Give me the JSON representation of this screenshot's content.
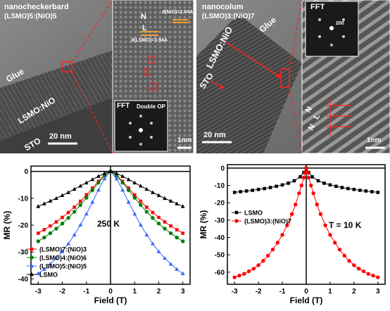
{
  "top_left": {
    "title_line1": "nanocheckerbard",
    "title_line2": "(LSMO)5:(NiO)5",
    "glue_label": "Glue",
    "film_label": "LSMO:NiO",
    "substrate_label": "STO",
    "scale_main": "20 nm",
    "scale_zoom": "1nm",
    "fft_label": "FFT",
    "fft_note": "Double OP",
    "lattice_letter_1": "N",
    "lattice_letter_2": "L",
    "d_lsmo": "d(LSMO)=3.94A",
    "d_nio": "d(NiO)=2.04A"
  },
  "top_right": {
    "title_line1": "nanocolum",
    "title_line2": "(LSMO)3:(NiO)7",
    "glue_label": "Glue",
    "film_label": "LSMO:NiO",
    "substrate_label": "STO",
    "scale_main": "20 nm",
    "scale_zoom": "1nm",
    "fft_label": "FFT",
    "fft_spot_label": "200",
    "layer_letters": [
      "N",
      "L",
      "N"
    ]
  },
  "chart_data": [
    {
      "type": "line",
      "xlabel": "Field (T)",
      "ylabel": "MR (%)",
      "xlim": [
        -3.3,
        3.3
      ],
      "ylim": [
        -42,
        2
      ],
      "xticks": [
        -3,
        -2,
        -1,
        0,
        1,
        2,
        3
      ],
      "yticks": [
        0,
        -10,
        -20,
        -30,
        -40
      ],
      "annotation": "250 K",
      "legend_position": "bottom-left",
      "series": [
        {
          "name": "(LSMO)7:(NiO)3",
          "color": "#ff0000",
          "marker": "square",
          "x": [
            -3,
            -2.75,
            -2.5,
            -2.25,
            -2,
            -1.75,
            -1.5,
            -1.25,
            -1,
            -0.75,
            -0.5,
            -0.25,
            0,
            0.25,
            0.5,
            0.75,
            1,
            1.25,
            1.5,
            1.75,
            2,
            2.25,
            2.5,
            2.75,
            3
          ],
          "y": [
            -23,
            -21.7,
            -20.3,
            -18.8,
            -17.1,
            -15.3,
            -13.3,
            -11.1,
            -8.7,
            -6.2,
            -3.7,
            -1.4,
            0,
            -1.4,
            -3.7,
            -6.2,
            -8.7,
            -11.1,
            -13.3,
            -15.3,
            -17.1,
            -18.8,
            -20.3,
            -21.7,
            -23
          ]
        },
        {
          "name": "(LSMO)4:(NiO)6",
          "color": "#008000",
          "marker": "circle",
          "x": [
            -3,
            -2.75,
            -2.5,
            -2.25,
            -2,
            -1.75,
            -1.5,
            -1.25,
            -1,
            -0.75,
            -0.5,
            -0.25,
            0,
            0.25,
            0.5,
            0.75,
            1,
            1.25,
            1.5,
            1.75,
            2,
            2.25,
            2.5,
            2.75,
            3
          ],
          "y": [
            -26,
            -24.6,
            -23,
            -21.3,
            -19.4,
            -17.3,
            -15,
            -12.5,
            -9.8,
            -7,
            -4.2,
            -1.6,
            0,
            -1.6,
            -4.2,
            -7,
            -9.8,
            -12.5,
            -15,
            -17.3,
            -19.4,
            -21.3,
            -23,
            -24.6,
            -26
          ]
        },
        {
          "name": "(LSMO)5:(NiO)5",
          "color": "#3366ff",
          "marker": "triangle",
          "x": [
            -3,
            -2.75,
            -2.5,
            -2.25,
            -2,
            -1.75,
            -1.5,
            -1.25,
            -1,
            -0.75,
            -0.5,
            -0.25,
            0,
            0.25,
            0.5,
            0.75,
            1,
            1.25,
            1.5,
            1.75,
            2,
            2.25,
            2.5,
            2.75,
            3
          ],
          "y": [
            -38,
            -36.4,
            -34.5,
            -32.3,
            -29.8,
            -26.9,
            -23.6,
            -19.9,
            -15.8,
            -11.4,
            -6.9,
            -2.7,
            0,
            -2.7,
            -6.9,
            -11.4,
            -15.8,
            -19.9,
            -23.6,
            -26.9,
            -29.8,
            -32.3,
            -34.5,
            -36.4,
            -38
          ]
        },
        {
          "name": "LSMO",
          "color": "#000000",
          "marker": "triangle",
          "x": [
            -3,
            -2.75,
            -2.5,
            -2.25,
            -2,
            -1.75,
            -1.5,
            -1.25,
            -1,
            -0.75,
            -0.5,
            -0.25,
            0,
            0.25,
            0.5,
            0.75,
            1,
            1.25,
            1.5,
            1.75,
            2,
            2.25,
            2.5,
            2.75,
            3
          ],
          "y": [
            -13,
            -12,
            -11,
            -10,
            -8.9,
            -7.8,
            -6.6,
            -5.4,
            -4.2,
            -3,
            -1.8,
            -0.7,
            0,
            -0.7,
            -1.8,
            -3,
            -4.2,
            -5.4,
            -6.6,
            -7.8,
            -8.9,
            -10,
            -11,
            -12,
            -13
          ]
        }
      ]
    },
    {
      "type": "line",
      "xlabel": "Field (T)",
      "ylabel": "MR (%)",
      "xlim": [
        -3.3,
        3.3
      ],
      "ylim": [
        -67,
        2
      ],
      "xticks": [
        -3,
        -2,
        -1,
        0,
        1,
        2,
        3
      ],
      "yticks": [
        0,
        -10,
        -20,
        -30,
        -40,
        -50,
        -60
      ],
      "annotation": "T = 10 K",
      "legend_position": "top-left",
      "series": [
        {
          "name": "LSMO",
          "color": "#000000",
          "marker": "square",
          "x": [
            -3,
            -2.75,
            -2.5,
            -2.25,
            -2,
            -1.75,
            -1.5,
            -1.25,
            -1,
            -0.75,
            -0.5,
            -0.25,
            -0.1,
            0,
            0.1,
            0.25,
            0.5,
            0.75,
            1,
            1.25,
            1.5,
            1.75,
            2,
            2.25,
            2.5,
            2.75,
            3
          ],
          "y": [
            -14,
            -13.6,
            -13.2,
            -12.8,
            -12.3,
            -11.8,
            -11.2,
            -10.5,
            -9.7,
            -8.7,
            -7.3,
            -5,
            -2.5,
            0,
            -2.5,
            -5,
            -7.3,
            -8.7,
            -9.7,
            -10.5,
            -11.2,
            -11.8,
            -12.3,
            -12.8,
            -13.2,
            -13.6,
            -14
          ]
        },
        {
          "name": "(LSMO)3:(NiO)7",
          "color": "#ff0000",
          "marker": "circle",
          "x": [
            -3,
            -2.8,
            -2.6,
            -2.4,
            -2.2,
            -2,
            -1.8,
            -1.6,
            -1.4,
            -1.2,
            -1,
            -0.8,
            -0.6,
            -0.45,
            -0.3,
            -0.2,
            -0.1,
            -0.05,
            0,
            0.05,
            0.1,
            0.2,
            0.3,
            0.45,
            0.6,
            0.8,
            1,
            1.2,
            1.4,
            1.6,
            1.8,
            2,
            2.2,
            2.4,
            2.6,
            2.8,
            3
          ],
          "y": [
            -63,
            -62,
            -61,
            -59.5,
            -58,
            -56,
            -53.5,
            -50.5,
            -47,
            -43,
            -38.5,
            -33,
            -26.5,
            -21,
            -14.5,
            -10,
            -5.5,
            -2.5,
            0,
            -2.5,
            -5.5,
            -10,
            -14.5,
            -21,
            -26.5,
            -33,
            -38.5,
            -43,
            -47,
            -50.5,
            -53.5,
            -56,
            -58,
            -59.5,
            -61,
            -62,
            -63
          ]
        }
      ]
    }
  ]
}
